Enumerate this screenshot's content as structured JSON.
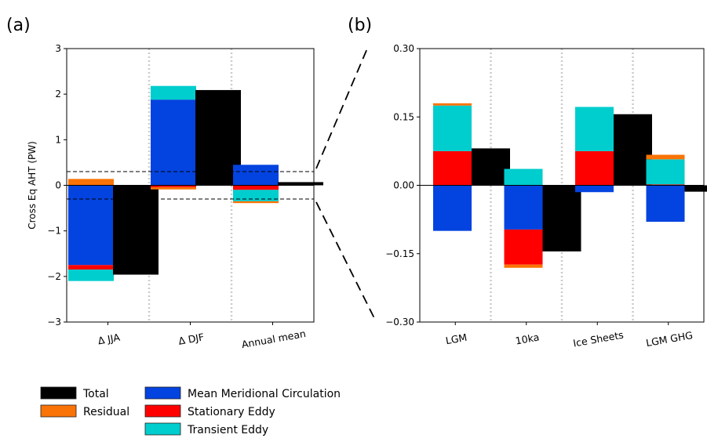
{
  "panel_labels": [
    "(a)",
    "(b)"
  ],
  "colors": {
    "Total": "#000000",
    "Residual": "#f97306",
    "Mean Meridional Circulation": "#0343df",
    "Stationary Eddy": "#ff0000",
    "Transient Eddy": "#00cdcd"
  },
  "legend": {
    "items": [
      {
        "label": "Total",
        "key": "Total"
      },
      {
        "label": "Residual",
        "key": "Residual"
      },
      {
        "label": "Mean Meridional Circulation",
        "key": "Mean Meridional Circulation"
      },
      {
        "label": "Stationary Eddy",
        "key": "Stationary Eddy"
      },
      {
        "label": "Transient Eddy",
        "key": "Transient Eddy"
      }
    ]
  },
  "chart_data": [
    {
      "type": "bar",
      "stacked": true,
      "panel": "(a)",
      "title": "",
      "xlabel": "",
      "ylabel": "Cross Eq AHT (PW)",
      "ylim": [
        -3,
        3
      ],
      "yticks": [
        3,
        2,
        1,
        0,
        -1,
        -2,
        -3
      ],
      "ytick_labels": [
        "3",
        "2",
        "1",
        "0",
        "−1",
        "−2",
        "−3"
      ],
      "categories": [
        "Δ JJA",
        "Δ DJF",
        "Annual mean"
      ],
      "series": [
        {
          "name": "Mean Meridional Circulation",
          "values": [
            -1.75,
            1.88,
            0.45
          ]
        },
        {
          "name": "Stationary Eddy",
          "values": [
            -0.1,
            -0.04,
            -0.1
          ]
        },
        {
          "name": "Transient Eddy",
          "values": [
            -0.25,
            0.3,
            -0.25
          ]
        },
        {
          "name": "Residual",
          "values": [
            0.14,
            -0.05,
            -0.04
          ]
        },
        {
          "name": "Total",
          "values": [
            -1.96,
            2.09,
            0.07
          ]
        }
      ],
      "reference_lines": [
        0.3,
        -0.3
      ],
      "grid": false
    },
    {
      "type": "bar",
      "stacked": true,
      "panel": "(b)",
      "title": "",
      "xlabel": "",
      "ylabel": "",
      "ylim": [
        -0.3,
        0.3
      ],
      "yticks": [
        0.3,
        0.15,
        0,
        -0.15,
        -0.3
      ],
      "ytick_labels": [
        "0.30",
        "0.15",
        "0.00",
        "−0.15",
        "−0.30"
      ],
      "categories": [
        "LGM",
        "10ka",
        "Ice Sheets",
        "LGM GHG"
      ],
      "series": [
        {
          "name": "Mean Meridional Circulation",
          "values": [
            -0.1,
            -0.097,
            -0.015,
            -0.08
          ]
        },
        {
          "name": "Stationary Eddy",
          "values": [
            0.075,
            -0.077,
            0.075,
            0.002
          ]
        },
        {
          "name": "Transient Eddy",
          "values": [
            0.1,
            0.036,
            0.097,
            0.055
          ]
        },
        {
          "name": "Residual",
          "values": [
            0.005,
            -0.007,
            0.0,
            0.01
          ]
        },
        {
          "name": "Total",
          "values": [
            0.081,
            -0.145,
            0.156,
            -0.014
          ]
        }
      ],
      "grid": false
    }
  ]
}
